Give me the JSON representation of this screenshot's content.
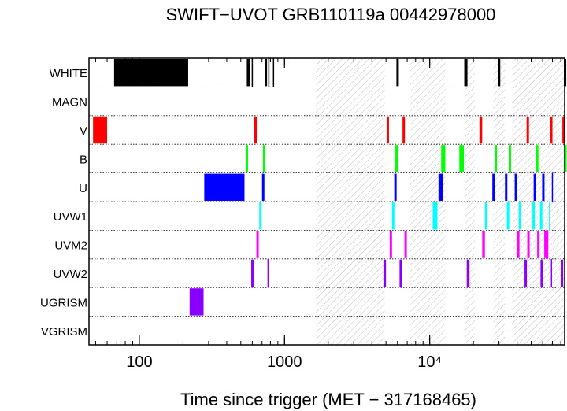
{
  "chart_data": {
    "type": "timeline",
    "title": "SWIFT−UVOT GRB110119a 00442978000",
    "xlabel": "Time since trigger (MET − 317168465)",
    "ylabel": "",
    "xscale": "log",
    "xlim": [
      45,
      85000
    ],
    "x_ticks": [
      {
        "value": 100,
        "label": "100"
      },
      {
        "value": 1000,
        "label": "1000"
      },
      {
        "value": 10000,
        "label": "10⁴"
      }
    ],
    "categories": [
      "WHITE",
      "MAGN",
      "V",
      "B",
      "U",
      "UVW1",
      "UVM2",
      "UVW2",
      "UGRISM",
      "VGRISM"
    ],
    "gaps": [
      [
        1650,
        4900
      ],
      [
        7300,
        12800
      ],
      [
        17500,
        20500
      ],
      [
        27500,
        33000
      ],
      [
        37000,
        85000
      ]
    ],
    "series": [
      {
        "category": "WHITE",
        "color": "#000000",
        "intervals": [
          [
            67,
            217
          ],
          [
            550,
            575
          ],
          [
            730,
            748
          ],
          [
            5900,
            6050
          ],
          [
            17300,
            18200
          ],
          [
            29500,
            30300
          ],
          [
            84000,
            85000
          ]
        ],
        "ticks": [
          600,
          780,
          840
        ]
      },
      {
        "category": "MAGN",
        "color": "#000000",
        "intervals": [],
        "ticks": []
      },
      {
        "category": "V",
        "color": "#ff0000",
        "intervals": [
          [
            48,
            60
          ],
          [
            620,
            635
          ],
          [
            5050,
            5200
          ],
          [
            6500,
            6700
          ],
          [
            22000,
            23000
          ],
          [
            46500,
            47500
          ],
          [
            67500,
            68500
          ],
          [
            82000,
            82600
          ]
        ],
        "ticks": []
      },
      {
        "category": "B",
        "color": "#00ff00",
        "intervals": [
          [
            540,
            560
          ],
          [
            710,
            730
          ],
          [
            5800,
            6000
          ],
          [
            12000,
            12800
          ],
          [
            16000,
            17200
          ],
          [
            28000,
            29000
          ],
          [
            35000,
            36000
          ],
          [
            54000,
            55000
          ],
          [
            84500,
            85000
          ]
        ],
        "ticks": []
      },
      {
        "category": "U",
        "color": "#0000ff",
        "intervals": [
          [
            280,
            530
          ],
          [
            700,
            720
          ],
          [
            5700,
            5900
          ],
          [
            11500,
            12300
          ],
          [
            27000,
            28000
          ],
          [
            33000,
            33800
          ],
          [
            38500,
            39500
          ],
          [
            52000,
            53000
          ],
          [
            59500,
            60500
          ]
        ],
        "ticks": [
          70000
        ]
      },
      {
        "category": "UVW1",
        "color": "#00ffff",
        "intervals": [
          [
            670,
            695
          ],
          [
            5500,
            5700
          ],
          [
            10500,
            11300
          ],
          [
            24000,
            24800
          ],
          [
            34000,
            35000
          ],
          [
            41000,
            42000
          ],
          [
            51000,
            52000
          ],
          [
            57500,
            58500
          ]
        ],
        "ticks": [
          67000
        ]
      },
      {
        "category": "UVM2",
        "color": "#ff00ff",
        "intervals": [
          [
            640,
            660
          ],
          [
            5300,
            5500
          ],
          [
            6700,
            6900
          ],
          [
            23000,
            24000
          ],
          [
            40000,
            41000
          ],
          [
            47000,
            48000
          ],
          [
            55000,
            56000
          ],
          [
            61500,
            62500
          ]
        ],
        "ticks": [
          63500,
          65000
        ]
      },
      {
        "category": "UVW2",
        "color": "#8800ff",
        "intervals": [
          [
            590,
            610
          ],
          [
            4800,
            5000
          ],
          [
            6200,
            6400
          ],
          [
            18000,
            18800
          ],
          [
            45000,
            46000
          ],
          [
            58000,
            59000
          ],
          [
            80000,
            81000
          ]
        ],
        "ticks": [
          770,
          69000
        ]
      },
      {
        "category": "UGRISM",
        "color": "#8800ff",
        "intervals": [
          [
            222,
            277
          ]
        ],
        "ticks": []
      },
      {
        "category": "VGRISM",
        "color": "#000000",
        "intervals": [],
        "ticks": []
      }
    ]
  }
}
